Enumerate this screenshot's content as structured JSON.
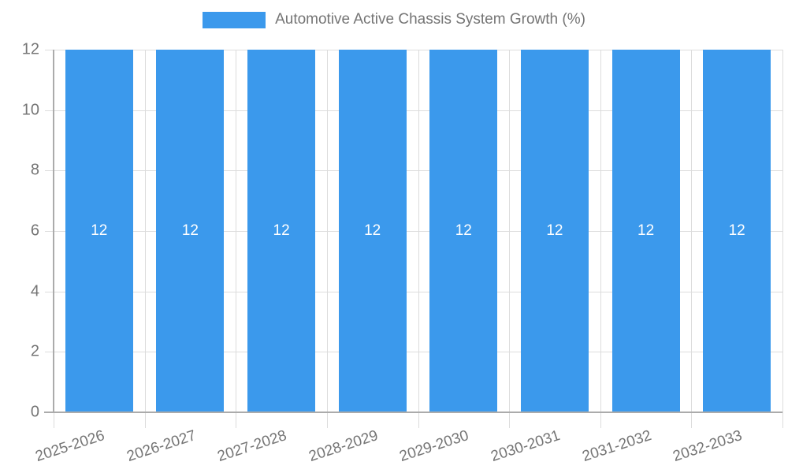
{
  "legend": {
    "label": "Automotive Active Chassis System Growth (%)"
  },
  "colors": {
    "bar": "#3B99EC",
    "grid": "#DCDCDC",
    "axis": "#ABABAB",
    "text": "#757575",
    "value_label": "#FFFFFF"
  },
  "chart_data": {
    "type": "bar",
    "title": "Automotive Active Chassis System Growth (%)",
    "categories": [
      "2025-2026",
      "2026-2027",
      "2027-2028",
      "2028-2029",
      "2029-2030",
      "2030-2031",
      "2031-2032",
      "2032-2033"
    ],
    "values": [
      12,
      12,
      12,
      12,
      12,
      12,
      12,
      12
    ],
    "bar_labels": [
      "12",
      "12",
      "12",
      "12",
      "12",
      "12",
      "12",
      "12"
    ],
    "ytick_labels": [
      "0",
      "2",
      "4",
      "6",
      "8",
      "10",
      "12"
    ],
    "yticks": [
      0,
      2,
      4,
      6,
      8,
      10,
      12
    ],
    "ylim": [
      0,
      12
    ],
    "xlabel": "",
    "ylabel": "",
    "grid": true,
    "legend_position": "top"
  }
}
